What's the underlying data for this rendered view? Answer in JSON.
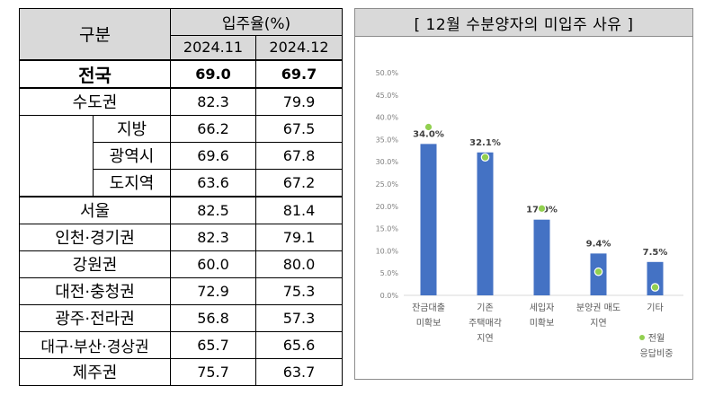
{
  "table": {
    "header_group": "구분",
    "header_rate": "입주율(%)",
    "col1": "2024.11",
    "col2": "2024.12",
    "rows": [
      {
        "label": "전국",
        "v1": "69.0",
        "v2": "69.7"
      },
      {
        "label": "수도권",
        "v1": "82.3",
        "v2": "79.9"
      },
      {
        "label": "지방",
        "v1": "66.2",
        "v2": "67.5"
      },
      {
        "label": "광역시",
        "v1": "69.6",
        "v2": "67.8"
      },
      {
        "label": "도지역",
        "v1": "63.6",
        "v2": "67.2"
      },
      {
        "label": "서울",
        "v1": "82.5",
        "v2": "81.4"
      },
      {
        "label": "인천·경기권",
        "v1": "82.3",
        "v2": "79.1"
      },
      {
        "label": "강원권",
        "v1": "60.0",
        "v2": "80.0"
      },
      {
        "label": "대전·충청권",
        "v1": "72.9",
        "v2": "75.3"
      },
      {
        "label": "광주·전라권",
        "v1": "56.8",
        "v2": "57.3"
      },
      {
        "label": "대구·부산·경상권",
        "v1": "65.7",
        "v2": "65.6"
      },
      {
        "label": "제주권",
        "v1": "75.7",
        "v2": "63.7"
      }
    ]
  },
  "chart_title": "[ 12월 수분양자의 미입주 사유 ]",
  "chart_data": {
    "type": "bar",
    "title": "[ 12월 수분양자의 미입주 사유 ]",
    "categories": [
      [
        "잔금대출",
        "미확보"
      ],
      [
        "기존",
        "주택매각",
        "지연"
      ],
      [
        "세입자",
        "미확보"
      ],
      [
        "분양권 매도",
        "지연"
      ],
      [
        "기타"
      ]
    ],
    "series": [
      {
        "values": [
          34.0,
          32.1,
          17.0,
          9.4,
          7.5
        ],
        "labels": [
          "34.0%",
          "32.1%",
          "17.0%",
          "9.4%",
          "7.5%"
        ],
        "color": "#4472c4"
      },
      {
        "name": "전월 응답비중",
        "values": [
          37.8,
          31.0,
          19.5,
          5.3,
          1.8
        ],
        "color": "#92d050"
      }
    ],
    "ylim": [
      0,
      50
    ],
    "yticks": [
      "0.0%",
      "5.0%",
      "10.0%",
      "15.0%",
      "20.0%",
      "25.0%",
      "30.0%",
      "35.0%",
      "40.0%",
      "45.0%",
      "50.0%"
    ],
    "legend_line1": "전월",
    "legend_line2": "응답비중",
    "legend_position": "bottom-right"
  }
}
